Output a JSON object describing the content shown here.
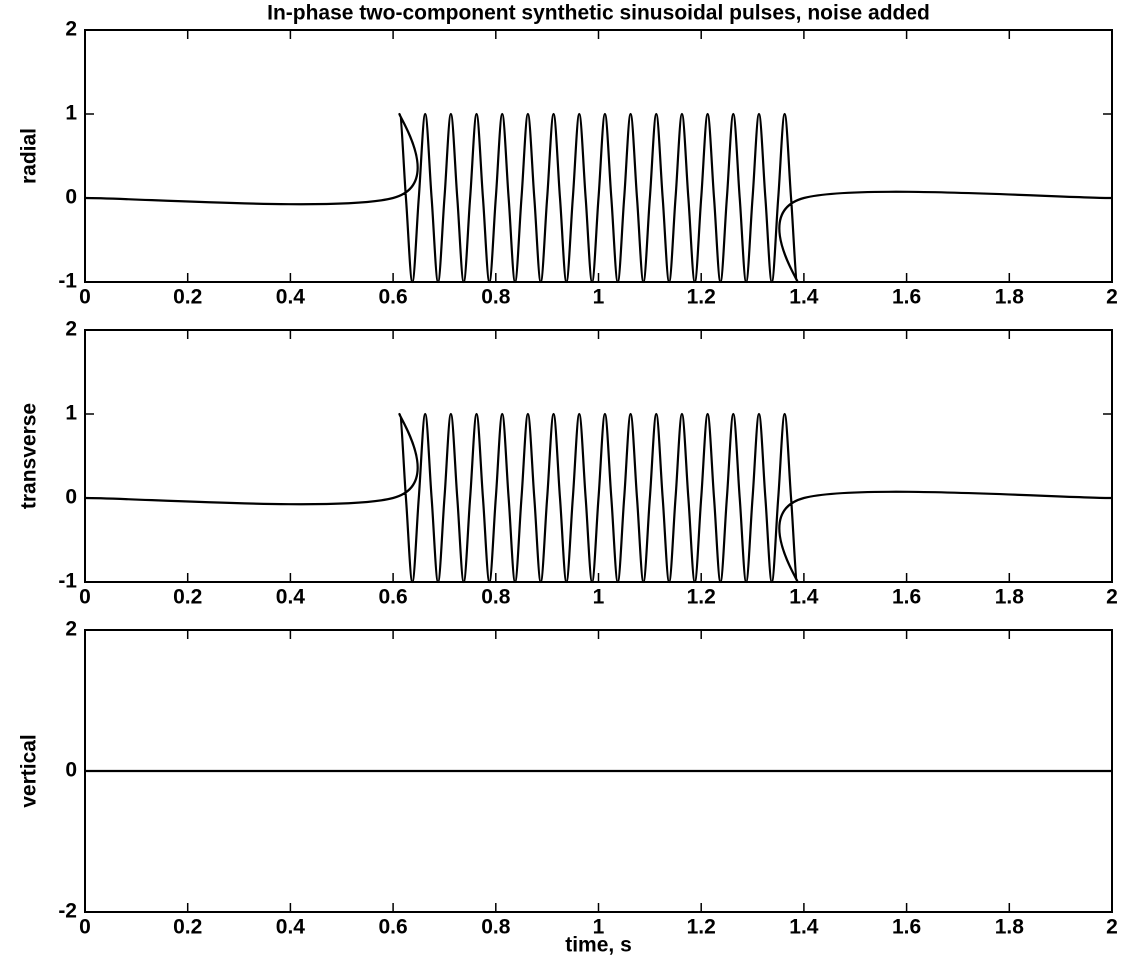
{
  "chart_data": [
    {
      "type": "line",
      "title": "In-phase two-component synthetic sinusoidal pulses, noise added",
      "ylabel": "radial",
      "x": [
        0,
        0.6,
        0.6125,
        0.625,
        0.6375,
        0.65,
        0.6625,
        0.675,
        0.6875,
        0.7,
        0.7125,
        0.725,
        0.7375,
        0.75,
        0.7625,
        0.775,
        0.7875,
        0.8,
        0.8125,
        0.825,
        0.8375,
        0.85,
        0.8625,
        0.875,
        0.8875,
        0.9,
        0.9125,
        0.925,
        0.9375,
        0.95,
        0.9625,
        0.975,
        0.9875,
        1,
        1.0125,
        1.025,
        1.0375,
        1.05,
        1.0625,
        1.075,
        1.0875,
        1.1,
        1.1125,
        1.125,
        1.1375,
        1.15,
        1.1625,
        1.175,
        1.1875,
        1.2,
        1.2125,
        1.225,
        1.2375,
        1.25,
        1.2625,
        1.275,
        1.2875,
        1.3,
        1.3125,
        1.325,
        1.3375,
        1.35,
        1.3625,
        1.375,
        1.3875,
        1.4,
        2
      ],
      "series": [
        {
          "color": "#000000",
          "values": [
            0,
            0,
            1,
            0,
            -1,
            0,
            1,
            0,
            -1,
            0,
            1,
            0,
            -1,
            0,
            1,
            0,
            -1,
            0,
            1,
            0,
            -1,
            0,
            1,
            0,
            -1,
            0,
            1,
            0,
            -1,
            0,
            1,
            0,
            -1,
            0,
            1,
            0,
            -1,
            0,
            1,
            0,
            -1,
            0,
            1,
            0,
            -1,
            0,
            1,
            0,
            -1,
            0,
            1,
            0,
            -1,
            0,
            1,
            0,
            -1,
            0,
            1,
            0,
            -1,
            0,
            1,
            0,
            -1,
            0,
            0
          ]
        }
      ],
      "xlim": [
        0,
        2
      ],
      "xticks": [
        0,
        0.2,
        0.4,
        0.6,
        0.8,
        1,
        1.2,
        1.4,
        1.6,
        1.8,
        2
      ],
      "ylim": [
        -1,
        2
      ],
      "yticks": [
        -1,
        0,
        1,
        2
      ]
    },
    {
      "type": "line",
      "ylabel": "transverse",
      "x": [
        0,
        0.6,
        0.6125,
        0.625,
        0.6375,
        0.65,
        0.6625,
        0.675,
        0.6875,
        0.7,
        0.7125,
        0.725,
        0.7375,
        0.75,
        0.7625,
        0.775,
        0.7875,
        0.8,
        0.8125,
        0.825,
        0.8375,
        0.85,
        0.8625,
        0.875,
        0.8875,
        0.9,
        0.9125,
        0.925,
        0.9375,
        0.95,
        0.9625,
        0.975,
        0.9875,
        1,
        1.0125,
        1.025,
        1.0375,
        1.05,
        1.0625,
        1.075,
        1.0875,
        1.1,
        1.1125,
        1.125,
        1.1375,
        1.15,
        1.1625,
        1.175,
        1.1875,
        1.2,
        1.2125,
        1.225,
        1.2375,
        1.25,
        1.2625,
        1.275,
        1.2875,
        1.3,
        1.3125,
        1.325,
        1.3375,
        1.35,
        1.3625,
        1.375,
        1.3875,
        1.4,
        2
      ],
      "series": [
        {
          "color": "#000000",
          "values": [
            0,
            0,
            1,
            0,
            -1,
            0,
            1,
            0,
            -1,
            0,
            1,
            0,
            -1,
            0,
            1,
            0,
            -1,
            0,
            1,
            0,
            -1,
            0,
            1,
            0,
            -1,
            0,
            1,
            0,
            -1,
            0,
            1,
            0,
            -1,
            0,
            1,
            0,
            -1,
            0,
            1,
            0,
            -1,
            0,
            1,
            0,
            -1,
            0,
            1,
            0,
            -1,
            0,
            1,
            0,
            -1,
            0,
            1,
            0,
            -1,
            0,
            1,
            0,
            -1,
            0,
            1,
            0,
            -1,
            0,
            0
          ]
        }
      ],
      "xlim": [
        0,
        2
      ],
      "xticks": [
        0,
        0.2,
        0.4,
        0.6,
        0.8,
        1,
        1.2,
        1.4,
        1.6,
        1.8,
        2
      ],
      "ylim": [
        -1,
        2
      ],
      "yticks": [
        -1,
        0,
        1,
        2
      ]
    },
    {
      "type": "line",
      "ylabel": "vertical",
      "xlabel": "time, s",
      "x": [
        0,
        2
      ],
      "series": [
        {
          "color": "#000000",
          "values": [
            0,
            0
          ]
        }
      ],
      "xlim": [
        0,
        2
      ],
      "xticks": [
        0,
        0.2,
        0.4,
        0.6,
        0.8,
        1,
        1.2,
        1.4,
        1.6,
        1.8,
        2
      ],
      "ylim": [
        -2,
        2
      ],
      "yticks": [
        -2,
        0,
        2
      ]
    }
  ]
}
